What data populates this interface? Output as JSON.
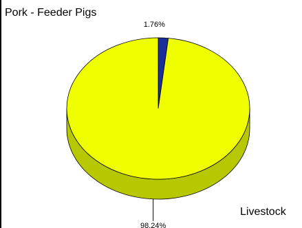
{
  "chart_data": {
    "type": "pie",
    "title": "Pork - Feeder Pigs",
    "legend_label": "Livestock",
    "slices": [
      {
        "label": "1.76%",
        "value": 1.76,
        "color": "#1a2f9a",
        "side_color": "#0d1a5e"
      },
      {
        "label": "98.24%",
        "value": 98.24,
        "color": "#f0ff00",
        "side_color": "#b8c800"
      }
    ],
    "three_d": true
  }
}
